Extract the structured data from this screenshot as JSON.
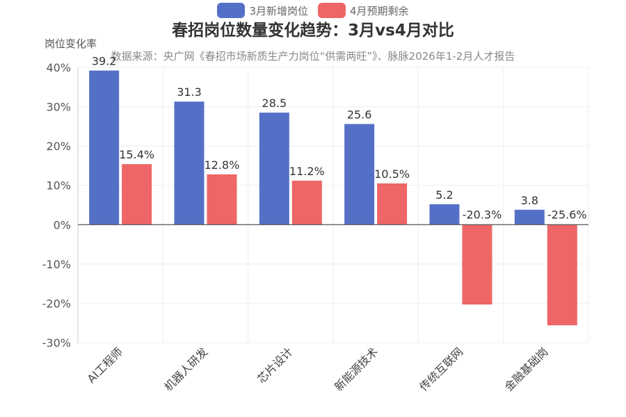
{
  "chart_data": {
    "type": "bar",
    "title": "春招岗位数量变化趋势：3月vs4月对比",
    "subtitle": "数据来源：央广网《春招市场新质生产力岗位“供需两旺”》、脉脉2026年1-2月人才报告",
    "ylabel": "岗位变化率",
    "xlabel": "",
    "ylim": [
      -30,
      40
    ],
    "yticks": [
      40,
      30,
      20,
      10,
      0,
      -10,
      -20,
      -30
    ],
    "ytick_labels": [
      "40%",
      "30%",
      "20%",
      "10%",
      "0%",
      "-10%",
      "-20%",
      "-30%"
    ],
    "categories": [
      "AI工程师",
      "机器人研发",
      "芯片设计",
      "新能源技术",
      "传统互联网",
      "金融基础岗"
    ],
    "series": [
      {
        "name": "3月新增岗位",
        "color": "#5470c6",
        "values": [
          39.2,
          31.3,
          28.5,
          25.6,
          5.2,
          3.8
        ],
        "labels": [
          "39.2",
          "31.3",
          "28.5",
          "25.6",
          "5.2",
          "3.8"
        ]
      },
      {
        "name": "4月预期剩余",
        "color": "#ee6666",
        "values": [
          15.4,
          12.8,
          11.2,
          10.5,
          -20.3,
          -25.6
        ],
        "labels": [
          "15.4%",
          "12.8%",
          "11.2%",
          "10.5%",
          "-20.3%",
          "-25.6%"
        ]
      }
    ],
    "legend_position": "top-center",
    "grid": true
  }
}
